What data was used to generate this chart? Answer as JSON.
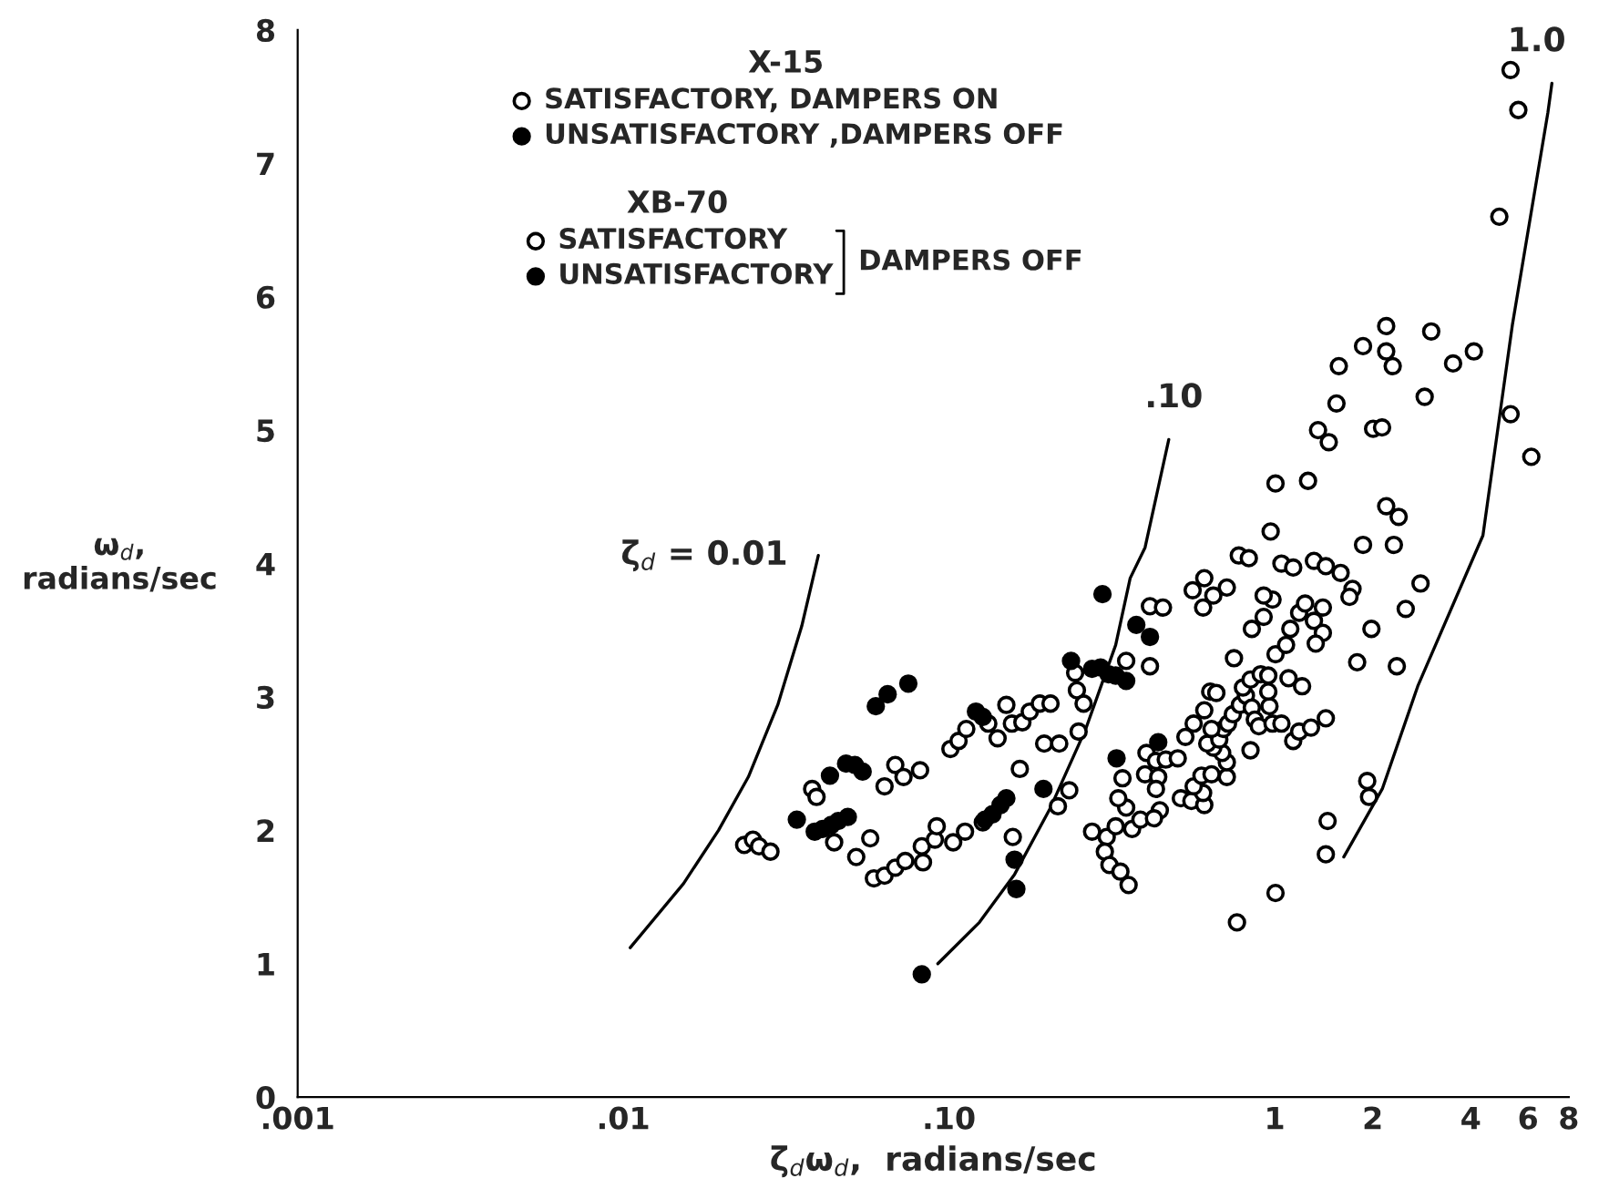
{
  "chart_data": {
    "type": "scatter",
    "xlabel": "ζ$_{d}$ω$_{d}$,  radians/sec",
    "ylabel": "ω$_{d}$,\nradians/sec",
    "log": "x",
    "xlim": [
      0.001,
      8
    ],
    "ylim": [
      0,
      8
    ],
    "xticks": [
      {
        "value": 0.001,
        "label": ".001"
      },
      {
        "value": 0.01,
        "label": ".01"
      },
      {
        "value": 0.1,
        "label": ".10"
      },
      1,
      2,
      4,
      6,
      8
    ],
    "yticks": [
      0,
      1,
      2,
      3,
      4,
      5,
      6,
      7,
      8
    ],
    "legend": "top left",
    "annotations": [
      "X-15",
      "XB-70",
      "DAMPERS OFF",
      "ζ$_{d}$ = 0.01",
      ".10",
      "1.0"
    ],
    "series": [
      {
        "name": "SATISFACTORY, DAMPERS ON",
        "color": "#ffffff",
        "marker": "circle",
        "x": [
          0.0235,
          0.025,
          0.0261,
          0.0283,
          0.0444,
          0.0519,
          0.0573,
          0.0588,
          0.0634,
          0.0684,
          0.0734,
          0.0832,
          0.0825,
          0.0905,
          0.0917,
          0.103,
          0.112,
          0.0634,
          0.0684,
          0.0725,
          0.0815,
          0.101,
          0.107,
          0.113,
          0.132,
          0.141,
          0.15,
          0.156,
          0.168,
          0.177,
          0.19,
          0.205,
          0.196,
          0.218,
          0.165,
          0.157,
          0.127,
          0.234,
          0.216,
          0.247,
          0.244,
          0.259,
          0.25,
          0.35,
          0.341,
          0.275,
          0.305,
          0.325,
          0.301,
          0.311,
          0.336,
          0.35,
          0.365,
          0.387,
          0.331,
          0.414,
          0.454,
          0.414,
          0.404,
          0.432,
          0.463,
          0.504,
          0.4,
          0.439,
          0.432,
          0.444,
          0.426,
          0.515,
          0.555,
          0.608,
          0.603,
          0.564,
          0.596,
          0.64,
          0.713,
          0.713,
          0.69,
          0.648,
          0.621,
          0.676,
          0.696,
          0.64,
          0.719,
          0.744,
          0.782,
          0.816,
          0.799,
          0.843,
          0.906,
          0.956,
          0.964,
          0.956,
          0.851,
          0.869,
          0.894,
          0.985,
          1.049,
          1.14,
          1.189,
          1.293,
          1.436,
          0.843,
          0.532,
          0.564,
          0.608,
          0.634,
          0.662,
          1.103,
          1.214,
          0.75,
          0.925,
          0.851,
          1.006,
          1.084,
          1.117,
          1.189,
          1.24,
          1.32,
          1.406,
          1.406,
          1.337,
          0.985,
          0.925,
          0.56,
          0.608,
          0.648,
          0.713,
          0.603,
          0.776,
          0.833,
          1.049,
          1.14,
          1.32,
          1.436,
          1.594,
          1.734,
          1.697,
          1.982,
          1.792,
          2.372,
          2.526,
          2.805,
          1.454,
          1.436,
          1.924,
          1.949,
          1.006,
          0.766,
          4.896,
          2.2,
          3.025,
          1.868,
          2.2,
          2.304,
          1.574,
          3.531,
          4.09,
          1.548,
          2.888,
          1.359,
          1.466,
          2.006,
          2.137,
          5.302,
          6.138,
          1.006,
          1.266,
          2.2,
          2.403,
          0.972,
          1.868,
          2.323,
          5.3,
          5.6
        ],
        "values": [
          1.89,
          1.93,
          1.88,
          1.84,
          1.91,
          1.8,
          1.94,
          1.64,
          1.66,
          1.72,
          1.77,
          1.76,
          1.88,
          1.93,
          2.03,
          1.91,
          1.99,
          2.33,
          2.49,
          2.4,
          2.45,
          2.61,
          2.67,
          2.76,
          2.8,
          2.69,
          2.94,
          2.8,
          2.81,
          2.89,
          2.95,
          2.95,
          2.65,
          2.65,
          2.46,
          1.95,
          2.06,
          2.3,
          2.18,
          3.05,
          3.18,
          2.95,
          2.74,
          3.27,
          2.39,
          1.99,
          1.95,
          2.03,
          1.84,
          1.74,
          1.69,
          2.17,
          2.01,
          2.08,
          2.24,
          3.68,
          3.67,
          3.23,
          2.58,
          2.52,
          2.53,
          2.54,
          2.42,
          2.4,
          2.31,
          2.15,
          2.09,
          2.24,
          2.22,
          2.19,
          2.28,
          2.33,
          2.41,
          2.42,
          2.4,
          2.51,
          2.58,
          2.62,
          2.65,
          2.68,
          2.76,
          2.76,
          2.8,
          2.87,
          2.94,
          3.01,
          3.07,
          3.13,
          3.17,
          3.16,
          2.93,
          3.04,
          2.92,
          2.83,
          2.78,
          2.8,
          2.8,
          2.67,
          2.74,
          2.77,
          2.84,
          2.6,
          2.7,
          2.8,
          2.9,
          3.04,
          3.03,
          3.14,
          3.08,
          3.29,
          3.6,
          3.51,
          3.32,
          3.39,
          3.51,
          3.63,
          3.7,
          3.57,
          3.67,
          3.48,
          3.4,
          3.73,
          3.76,
          3.8,
          3.89,
          3.76,
          3.82,
          3.67,
          4.06,
          4.04,
          4.0,
          3.97,
          4.02,
          3.98,
          3.93,
          3.81,
          3.75,
          3.51,
          3.26,
          3.23,
          3.66,
          3.85,
          2.07,
          1.82,
          2.37,
          2.25,
          1.53,
          1.31,
          6.6,
          5.78,
          5.74,
          5.63,
          5.59,
          5.48,
          5.48,
          5.5,
          5.59,
          5.2,
          5.25,
          5.0,
          4.91,
          5.01,
          5.02,
          5.12,
          4.8,
          4.6,
          4.62,
          4.43,
          4.35,
          4.24,
          4.14,
          4.14,
          7.7,
          7.4
        ]
      },
      {
        "name": "UNSATISFACTORY ,DAMPERS OFF",
        "color": "#000000",
        "marker": "circle",
        "x": [
          0.0341,
          0.0387,
          0.0409,
          0.0435,
          0.0457,
          0.0489,
          0.0431,
          0.0483,
          0.0514,
          0.0543,
          0.0596,
          0.0648,
          0.075,
          0.121,
          0.127,
          0.129,
          0.136,
          0.144,
          0.15,
          0.195,
          0.0825,
          0.296,
          0.237,
          0.275,
          0.292,
          0.309,
          0.325,
          0.35,
          0.376,
          0.327,
          0.439,
          0.414
        ],
        "values": [
          2.08,
          1.99,
          2.01,
          2.04,
          2.07,
          2.1,
          2.41,
          2.5,
          2.49,
          2.44,
          2.93,
          3.02,
          3.1,
          2.89,
          2.85,
          2.08,
          2.12,
          2.19,
          2.24,
          2.31,
          0.92,
          3.77,
          3.27,
          3.21,
          3.22,
          3.17,
          3.16,
          3.12,
          3.54,
          2.54,
          2.66,
          3.45
        ]
      },
      {
        "name": "SATISFACTORY",
        "color": "#ffffff",
        "marker": "circle",
        "x": [
          0.038,
          0.0392,
          0.356
        ],
        "values": [
          2.31,
          2.25,
          1.59
        ]
      },
      {
        "name": "UNSATISFACTORY",
        "color": "#000000",
        "marker": "circle",
        "x": [
          0.159,
          0.161
        ],
        "values": [
          1.78,
          1.56
        ]
      },
      {
        "type": "line",
        "color": "#000000",
        "x": [
          0.0105,
          0.0153,
          0.0196,
          0.0242,
          0.0298,
          0.0353,
          0.0397
        ],
        "values": [
          1.12,
          1.6,
          2.0,
          2.4,
          2.94,
          3.53,
          4.06
        ]
      },
      {
        "type": "line",
        "color": "#000000",
        "x": [
          0.0924,
          0.124,
          0.159,
          0.205,
          0.263,
          0.325,
          0.36,
          0.4,
          0.473
        ],
        "values": [
          1.0,
          1.31,
          1.67,
          2.17,
          2.76,
          3.39,
          3.89,
          4.12,
          4.93
        ]
      },
      {
        "type": "line",
        "color": "#000000",
        "x": [
          1.63,
          2.14,
          2.75,
          4.36,
          5.37,
          6.9,
          7.1
        ],
        "values": [
          1.8,
          2.31,
          3.08,
          4.21,
          5.79,
          7.38,
          7.6
        ]
      }
    ]
  }
}
